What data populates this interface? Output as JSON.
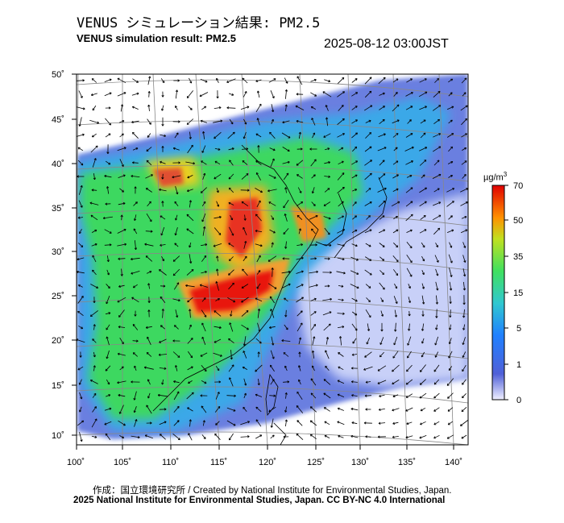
{
  "header": {
    "title_jp": "VENUS シミュレーション結果: PM2.5",
    "title_en": "VENUS simulation result: PM2.5",
    "timestamp": "2025-08-12 03:00JST"
  },
  "map": {
    "lon_ticks": [
      "100˚",
      "105˚",
      "110˚",
      "115˚",
      "120˚",
      "125˚",
      "130˚",
      "135˚",
      "140˚"
    ],
    "lat_ticks": [
      "50˚",
      "45˚",
      "40˚",
      "35˚",
      "30˚",
      "25˚",
      "20˚",
      "15˚",
      "10˚"
    ],
    "lon_range": [
      100,
      141
    ],
    "lat_range": [
      9,
      50
    ],
    "field": "PM2.5 concentration"
  },
  "colorbar": {
    "unit": "µg/m",
    "unit_sup": "3",
    "labels": [
      "70",
      "50",
      "35",
      "15",
      "5",
      "1",
      "0"
    ],
    "colors": [
      "#f0f0ff",
      "#3050c8",
      "#30a0ff",
      "#40e060",
      "#f0e000",
      "#ff8000",
      "#e00000"
    ]
  },
  "footer": {
    "credit_line1": "作成：国立環境研究所 / Created by National Institute for Environmental Studies, Japan.",
    "credit_line2": "2025 National Institute for Environmental Studies, Japan. CC BY-NC 4.0 International"
  }
}
